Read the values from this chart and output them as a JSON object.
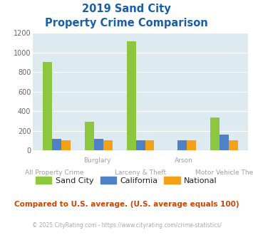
{
  "title_line1": "2019 Sand City",
  "title_line2": "Property Crime Comparison",
  "groups": [
    "All Property Crime",
    "Burglary",
    "Larceny & Theft",
    "Arson",
    "Motor Vehicle Theft"
  ],
  "top_labels": {
    "1": "Burglary",
    "3": "Arson"
  },
  "bottom_labels": {
    "0": "All Property Crime",
    "2": "Larceny & Theft",
    "4": "Motor Vehicle Theft"
  },
  "sand_city": [
    900,
    290,
    1115,
    0,
    335
  ],
  "california": [
    120,
    120,
    105,
    100,
    165
  ],
  "national": [
    100,
    100,
    100,
    100,
    100
  ],
  "bar_color_city": "#8dc63f",
  "bar_color_ca": "#4f81c7",
  "bar_color_nat": "#f4a018",
  "ylim": [
    0,
    1200
  ],
  "yticks": [
    0,
    200,
    400,
    600,
    800,
    1000,
    1200
  ],
  "bg_color": "#ddeaf0",
  "title_color": "#1a5fa8",
  "xlabel_color": "#a0a0a0",
  "legend_label_color": "#222222",
  "footer_text": "Compared to U.S. average. (U.S. average equals 100)",
  "footer_color": "#cc4400",
  "copyright_text": "© 2025 CityRating.com - https://www.cityrating.com/crime-statistics/",
  "copyright_color": "#aaaaaa",
  "legend_labels": [
    "Sand City",
    "California",
    "National"
  ],
  "bar_width": 0.22
}
